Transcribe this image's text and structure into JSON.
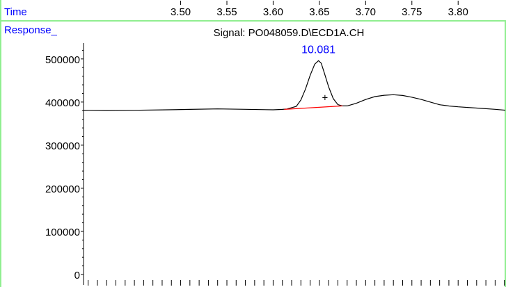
{
  "window": {
    "time_label": "Time",
    "response_label": "Response_",
    "signal_title": "Signal: PO048059.D\\ECD1A.CH"
  },
  "colors": {
    "frame_border": "#90ee90",
    "axis_labels": "#0000ff",
    "trace": "#000000",
    "baseline": "#ff0000"
  },
  "chart_data": {
    "type": "line",
    "title": "Signal: PO048059.D\\ECD1A.CH",
    "xlabel": "Time",
    "ylabel": "Response_",
    "x_ticks": [
      "3.50",
      "3.55",
      "3.60",
      "3.65",
      "3.70",
      "3.75",
      "3.80"
    ],
    "x_tick_values": [
      3.5,
      3.55,
      3.6,
      3.65,
      3.7,
      3.75,
      3.8
    ],
    "y_ticks": [
      "500000",
      "400000",
      "300000",
      "200000",
      "100000",
      "0"
    ],
    "y_tick_values": [
      500000,
      400000,
      300000,
      200000,
      100000,
      0
    ],
    "xlim": [
      3.395,
      3.851
    ],
    "ylim": [
      -8000,
      540000
    ],
    "grid": false,
    "series": [
      {
        "x": [
          3.395,
          3.42,
          3.45,
          3.48,
          3.51,
          3.54,
          3.57,
          3.6,
          3.61,
          3.615,
          3.625,
          3.63,
          3.635,
          3.64,
          3.645,
          3.649,
          3.652,
          3.655,
          3.66,
          3.665,
          3.67,
          3.675,
          3.68,
          3.69,
          3.7,
          3.71,
          3.72,
          3.73,
          3.74,
          3.75,
          3.76,
          3.77,
          3.78,
          3.79,
          3.8,
          3.82,
          3.84,
          3.851
        ],
        "y": [
          381000,
          381500,
          382000,
          382000,
          382000,
          383000,
          383000,
          383000,
          383000,
          384000,
          390000,
          405000,
          430000,
          462000,
          488000,
          496000,
          490000,
          470000,
          435000,
          408000,
          394000,
          391000,
          391000,
          396000,
          405000,
          413000,
          417000,
          418000,
          415000,
          410000,
          405000,
          400000,
          395000,
          392000,
          389000,
          385000,
          382000,
          381000
        ]
      }
    ],
    "baseline": {
      "x": [
        3.612,
        3.675
      ],
      "y": [
        383000,
        391000
      ]
    },
    "peak_label": "10.081",
    "peak_label_position": {
      "x": 3.649,
      "y": 520000
    },
    "integration_marker": {
      "symbol": "+",
      "x": 3.656,
      "y": 410000
    }
  }
}
